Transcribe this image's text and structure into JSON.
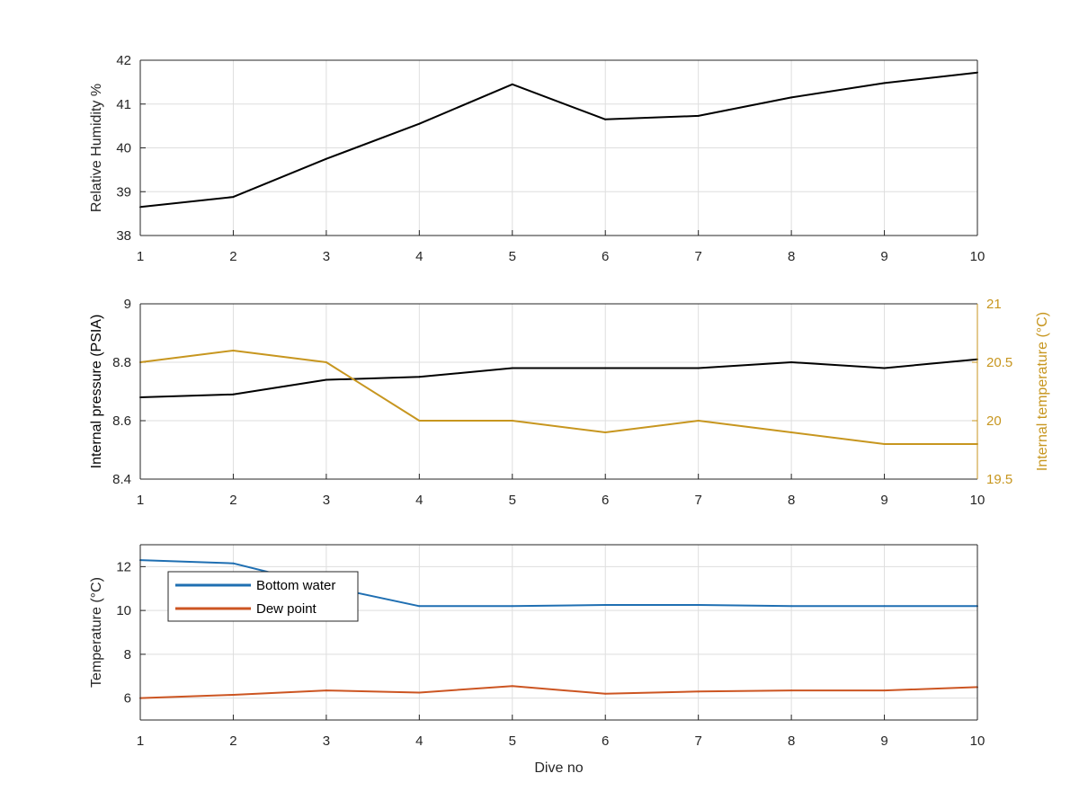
{
  "chart_data": [
    {
      "type": "line",
      "title": "",
      "xlabel": "",
      "ylabel": "Relative Humidity %",
      "xlim": [
        1,
        10
      ],
      "ylim": [
        38,
        42
      ],
      "xticks": [
        "1",
        "2",
        "3",
        "4",
        "5",
        "6",
        "7",
        "8",
        "9",
        "10"
      ],
      "yticks": [
        "38",
        "39",
        "40",
        "41",
        "42"
      ],
      "grid": true,
      "series": [
        {
          "color": "#000000",
          "x": [
            1,
            2,
            3,
            4,
            5,
            6,
            7,
            8,
            9,
            10
          ],
          "values": [
            38.65,
            38.88,
            39.75,
            40.55,
            41.45,
            40.65,
            40.73,
            41.15,
            41.48,
            41.72
          ]
        }
      ]
    },
    {
      "type": "line",
      "title": "",
      "xlabel": "",
      "ylabel": "Internal pressure (PSIA)",
      "ylabel_right": "Internal temperature (°C)",
      "xlim": [
        1,
        10
      ],
      "ylim": [
        8.4,
        9
      ],
      "ylim_right": [
        19.5,
        21
      ],
      "xticks": [
        "1",
        "2",
        "3",
        "4",
        "5",
        "6",
        "7",
        "8",
        "9",
        "10"
      ],
      "yticks": [
        "8.4",
        "8.6",
        "8.8",
        "9"
      ],
      "yticks_right": [
        "19.5",
        "20",
        "20.5",
        "21"
      ],
      "grid": true,
      "series": [
        {
          "axis": "left",
          "color": "#000000",
          "x": [
            1,
            2,
            3,
            4,
            5,
            6,
            7,
            8,
            9,
            10
          ],
          "values": [
            8.68,
            8.69,
            8.74,
            8.75,
            8.78,
            8.78,
            8.78,
            8.8,
            8.78,
            8.81
          ]
        },
        {
          "axis": "right",
          "color": "#C7961F",
          "x": [
            1,
            2,
            3,
            4,
            5,
            6,
            7,
            8,
            9,
            10
          ],
          "values": [
            20.5,
            20.6,
            20.5,
            20.0,
            20.0,
            19.9,
            20.0,
            19.9,
            19.8,
            19.8
          ]
        }
      ]
    },
    {
      "type": "line",
      "title": "",
      "xlabel": "Dive no",
      "ylabel": "Temperature (°C)",
      "xlim": [
        1,
        10
      ],
      "ylim": [
        5,
        13
      ],
      "xticks": [
        "1",
        "2",
        "3",
        "4",
        "5",
        "6",
        "7",
        "8",
        "9",
        "10"
      ],
      "yticks": [
        "6",
        "8",
        "10",
        "12"
      ],
      "ytick_values": [
        6,
        8,
        10,
        12
      ],
      "grid": true,
      "legend_position": "top-left",
      "series": [
        {
          "name": "Bottom water",
          "color": "#1F6FB2",
          "x": [
            1,
            2,
            3,
            4,
            5,
            6,
            7,
            8,
            9,
            10
          ],
          "values": [
            12.3,
            12.15,
            11.1,
            10.2,
            10.2,
            10.25,
            10.25,
            10.2,
            10.2,
            10.2
          ]
        },
        {
          "name": "Dew point",
          "color": "#CC5522",
          "x": [
            1,
            2,
            3,
            4,
            5,
            6,
            7,
            8,
            9,
            10
          ],
          "values": [
            6.0,
            6.15,
            6.35,
            6.25,
            6.55,
            6.2,
            6.3,
            6.35,
            6.35,
            6.5
          ]
        }
      ]
    }
  ]
}
